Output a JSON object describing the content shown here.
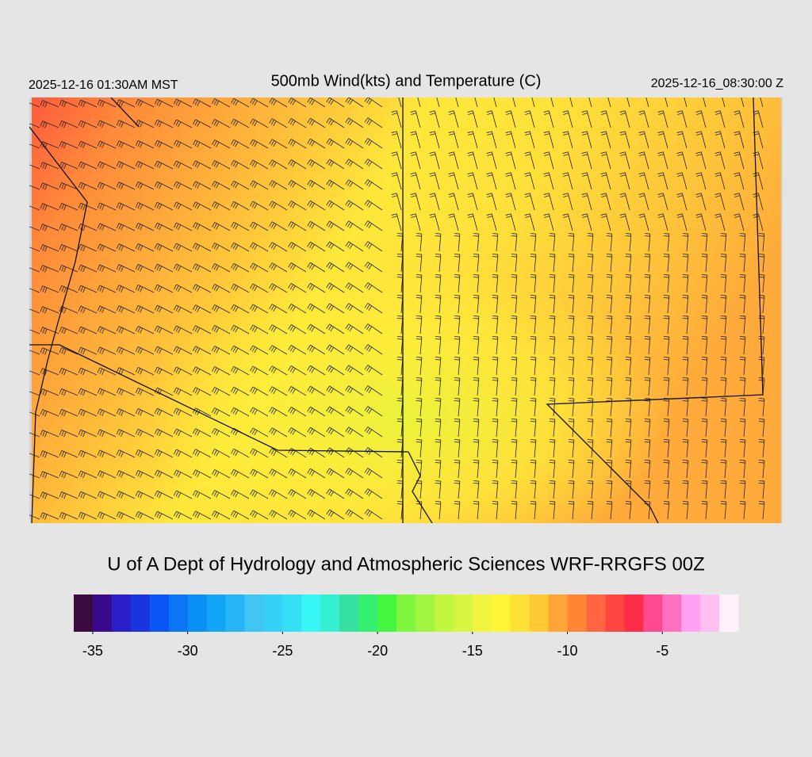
{
  "header": {
    "title": "500mb Wind(kts) and Temperature (C)",
    "local_time": "2025-12-16 01:30AM MST",
    "valid_time": "2025-12-16_08:30:00 Z"
  },
  "credit": "U of A Dept of Hydrology and Atmospheric Sciences WRF-RRGFS 00Z",
  "colorbar": {
    "range": [
      -36,
      -1
    ],
    "ticks": [
      -35,
      -30,
      -25,
      -20,
      -15,
      -10,
      -5
    ],
    "colors": [
      "#3b0a3f",
      "#3a0a8c",
      "#2a1fc8",
      "#1a35e0",
      "#0a55f5",
      "#0a75f5",
      "#0a90f5",
      "#12a5f5",
      "#25b5f5",
      "#40c5f5",
      "#35d0f5",
      "#35e0f5",
      "#35f5f5",
      "#35f0d0",
      "#35e0a0",
      "#35f070",
      "#45f540",
      "#80f540",
      "#a0f540",
      "#c0f540",
      "#d8f540",
      "#f0f540",
      "#fff535",
      "#ffe035",
      "#ffc835",
      "#ffa535",
      "#ff8535",
      "#ff6540",
      "#ff4540",
      "#ff2c48",
      "#ff4a90",
      "#ff70c0",
      "#ffa0f0",
      "#ffc0f0",
      "#fff0fc"
    ]
  }
}
